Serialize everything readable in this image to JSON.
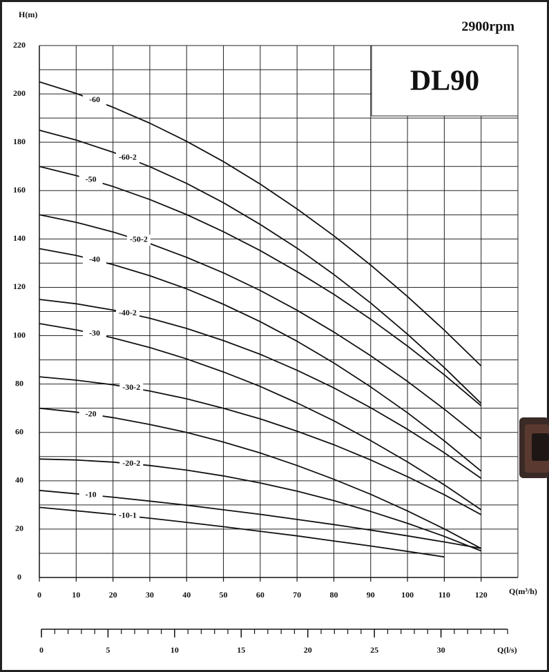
{
  "chart_data": {
    "type": "line",
    "title": "DL90",
    "subtitle": "2900rpm",
    "y_label": "H(m)",
    "x_label": "Q(m³/h)",
    "x2_label": "Q(l/s)",
    "color": "#111111",
    "grid": true,
    "x": [
      0,
      10,
      20,
      30,
      40,
      50,
      60,
      70,
      80,
      90,
      100,
      110,
      120
    ],
    "xlim": [
      0,
      130
    ],
    "xticks": [
      0,
      10,
      20,
      30,
      40,
      50,
      60,
      70,
      80,
      90,
      100,
      110,
      120
    ],
    "ylim": [
      0,
      220
    ],
    "yticks": [
      0,
      20,
      40,
      60,
      80,
      100,
      120,
      140,
      160,
      180,
      200,
      220
    ],
    "yminor": [
      10,
      30,
      50,
      70,
      90,
      110,
      130,
      150,
      170,
      190,
      210
    ],
    "x2lim": [
      0,
      35
    ],
    "x2ticks": [
      0,
      5,
      10,
      15,
      20,
      25,
      30
    ],
    "x2minor": [
      0,
      1,
      2,
      3,
      4,
      5,
      6,
      7,
      8,
      9,
      10,
      11,
      12,
      13,
      14,
      15,
      16,
      17,
      18,
      19,
      20,
      21,
      22,
      23,
      24,
      25,
      26,
      27,
      28,
      29,
      30,
      31,
      32,
      33,
      34,
      35
    ],
    "series": [
      {
        "name": "-60",
        "values": [
          205,
          200.2,
          194.5,
          187.9,
          180.4,
          172,
          162.7,
          152.4,
          141.3,
          129.2,
          116.2,
          102.3,
          87.5
        ]
      },
      {
        "name": "-60-2",
        "values": [
          185,
          180.9,
          175.9,
          169.9,
          163,
          155,
          146,
          136.2,
          125.3,
          113.5,
          100.6,
          86.8,
          72
        ]
      },
      {
        "name": "-50",
        "values": [
          170,
          166.2,
          161.7,
          156.3,
          150.1,
          143,
          135.2,
          126.5,
          117.1,
          106.8,
          95.7,
          83.8,
          71
        ]
      },
      {
        "name": "-50-2",
        "values": [
          150,
          146.9,
          142.9,
          138.1,
          132.4,
          126,
          118.7,
          110.5,
          101.5,
          91.7,
          81.1,
          69.6,
          57.4
        ]
      },
      {
        "name": "-40",
        "values": [
          136,
          133.2,
          129.4,
          124.8,
          119.4,
          113,
          105.8,
          97.7,
          88.7,
          78.8,
          68.1,
          56.5,
          44
        ]
      },
      {
        "name": "-40-2",
        "values": [
          115,
          113.2,
          110.6,
          107.2,
          103,
          98,
          92.3,
          85.7,
          78.4,
          70.2,
          61.3,
          51.6,
          41
        ]
      },
      {
        "name": "-30",
        "values": [
          105,
          102.4,
          99.1,
          95.1,
          90.4,
          85,
          79,
          72.2,
          64.8,
          56.6,
          47.8,
          38.3,
          28
        ]
      },
      {
        "name": "-30-2",
        "values": [
          83,
          81.6,
          79.7,
          77.1,
          73.9,
          70,
          65.6,
          60.5,
          54.9,
          48.6,
          41.7,
          34.2,
          26
        ]
      },
      {
        "name": "-20",
        "values": [
          70,
          68.4,
          66.1,
          63.3,
          60,
          56,
          51.5,
          46.3,
          40.6,
          34.4,
          27.5,
          20.1,
          12
        ]
      },
      {
        "name": "-20-2",
        "values": [
          49,
          48.6,
          47.7,
          46.3,
          44.4,
          42,
          39.1,
          35.7,
          31.8,
          27.3,
          22.4,
          17,
          11
        ]
      },
      {
        "name": "-10",
        "values": [
          36,
          34.6,
          33.2,
          31.6,
          29.9,
          28,
          26.1,
          24,
          21.9,
          19.6,
          17.2,
          14.7,
          12
        ]
      },
      {
        "name": "-10-1",
        "values": [
          29,
          27.6,
          26.1,
          24.5,
          22.8,
          21,
          19.1,
          17.2,
          15.1,
          13,
          10.8,
          8.5,
          null
        ]
      }
    ]
  }
}
